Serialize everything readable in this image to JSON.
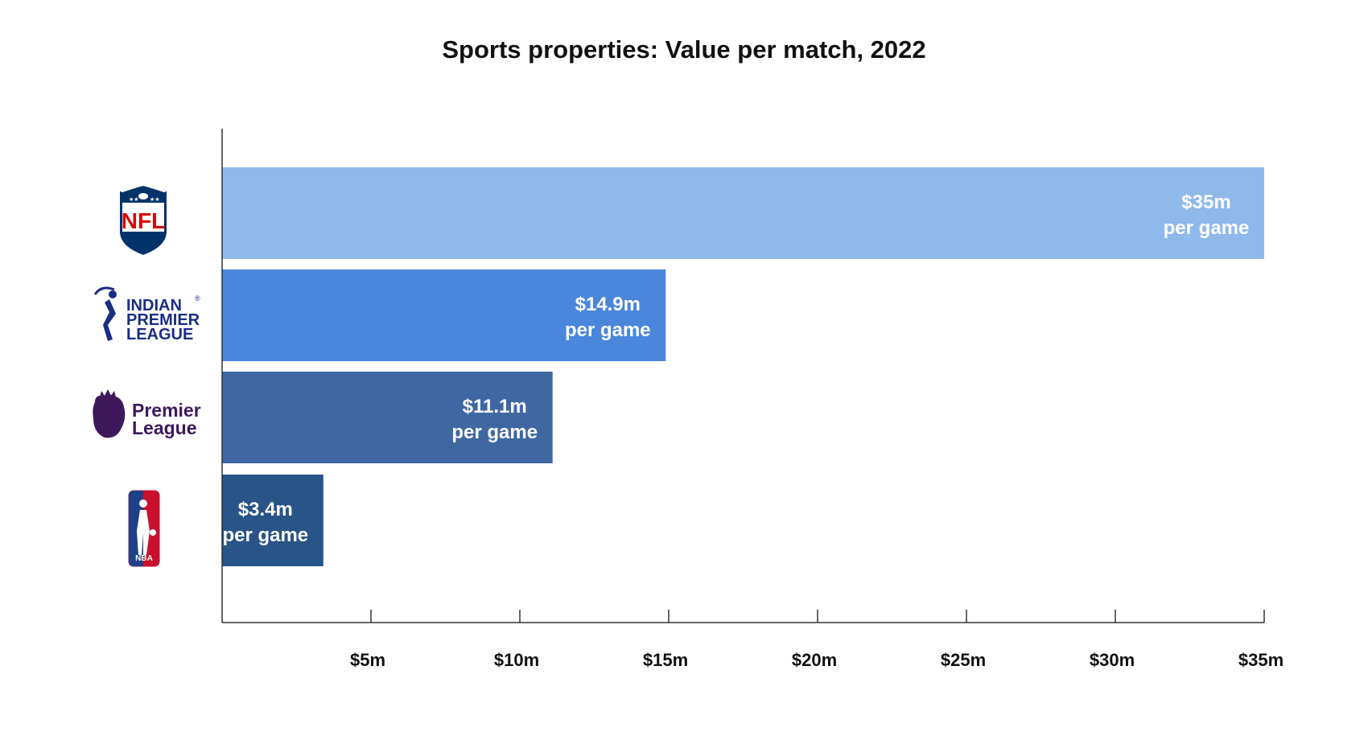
{
  "chart_data": {
    "type": "bar",
    "orientation": "horizontal",
    "title": "Sports properties: Value per match, 2022",
    "xlabel": "",
    "ylabel": "",
    "xlim": [
      0,
      35
    ],
    "grid": false,
    "categories": [
      "NFL",
      "Indian Premier League",
      "Premier League",
      "NBA"
    ],
    "values": [
      35,
      14.9,
      11.1,
      3.4
    ],
    "value_labels": [
      [
        "$35m",
        "per game"
      ],
      [
        "$14.9m",
        "per game"
      ],
      [
        "$11.1m",
        "per game"
      ],
      [
        "$3.4m",
        "per game"
      ]
    ],
    "bar_colors": [
      "#8fb9ea",
      "#4a86db",
      "#3f68a3",
      "#285487"
    ],
    "x_ticks": [
      5,
      10,
      15,
      20,
      25,
      30,
      35
    ],
    "x_tick_labels": [
      "$5m",
      "$10m",
      "$15m",
      "$20m",
      "$25m",
      "$30m",
      "$35m"
    ]
  },
  "logos": {
    "nfl": {
      "text": "NFL",
      "colors": {
        "blue": "#013369",
        "red": "#d50a0a"
      }
    },
    "ipl": {
      "lines": [
        "INDIAN",
        "PREMIER",
        "LEAGUE"
      ],
      "mark": "®",
      "color": "#1a2d84"
    },
    "premier_league": {
      "lines": [
        "Premier",
        "League"
      ],
      "color": "#3d195b"
    },
    "nba": {
      "text": "NBA",
      "colors": {
        "blue": "#1d428a",
        "red": "#c8102e"
      }
    }
  }
}
